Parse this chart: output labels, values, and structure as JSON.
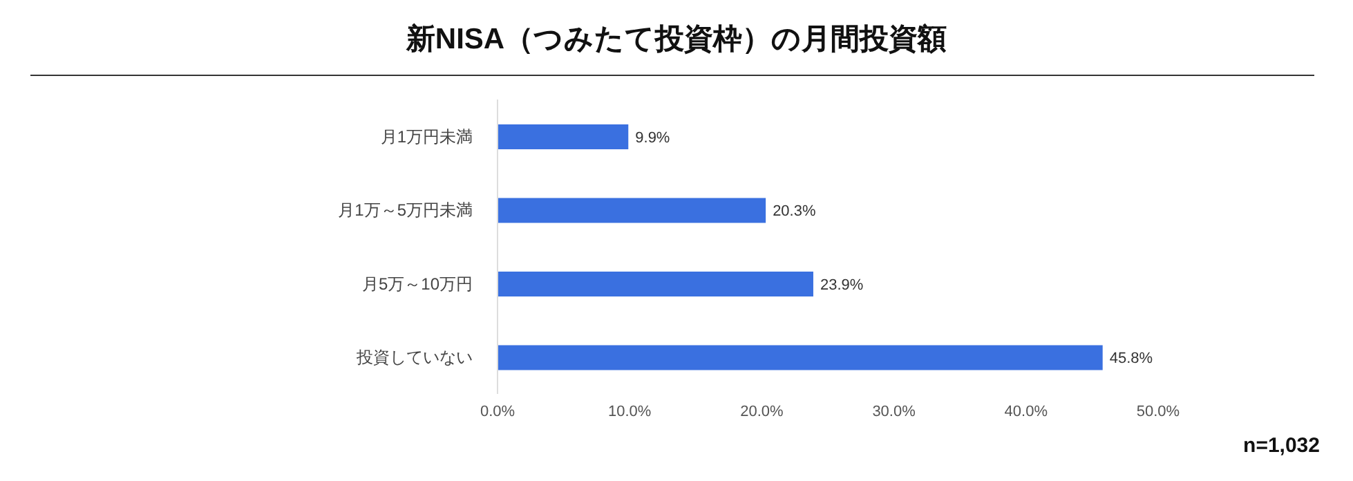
{
  "chart_data": {
    "type": "bar",
    "orientation": "horizontal",
    "title": "新NISA（つみたて投資枠）の月間投資額",
    "categories": [
      "月1万円未満",
      "月1万～5万円未満",
      "月5万～10万円",
      "投資していない"
    ],
    "values": [
      9.9,
      20.3,
      23.9,
      45.8
    ],
    "color": "#3a70e0",
    "value_labels": [
      "9.9%",
      "20.3%",
      "23.9%",
      "45.8%"
    ],
    "xlim": [
      0,
      50
    ],
    "xticks": [
      {
        "value": 0,
        "label": "0.0%"
      },
      {
        "value": 10,
        "label": "10.0%"
      },
      {
        "value": 20,
        "label": "20.0%"
      },
      {
        "value": 30,
        "label": "30.0%"
      },
      {
        "value": 40,
        "label": "40.0%"
      },
      {
        "value": 50,
        "label": "50.0%"
      }
    ],
    "grid": false,
    "legend": false,
    "annotations": [
      "n=1,032"
    ]
  }
}
